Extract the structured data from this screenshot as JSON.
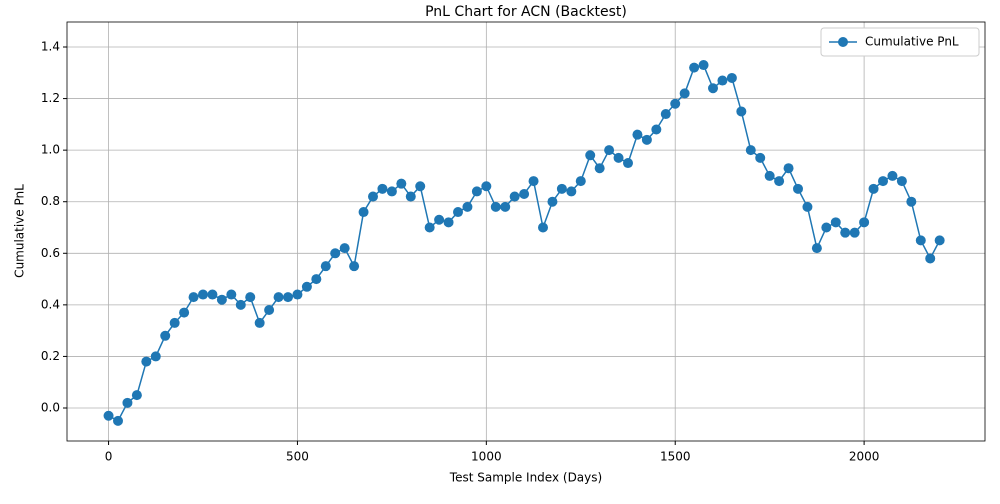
{
  "chart_data": {
    "type": "line",
    "title": "PnL Chart for ACN (Backtest)",
    "x_label": "Test Sample Index (Days)",
    "y_label": "Cumulative PnL",
    "x": [
      0,
      25,
      50,
      75,
      100,
      125,
      150,
      175,
      200,
      225,
      250,
      275,
      300,
      325,
      350,
      375,
      400,
      425,
      450,
      475,
      500,
      525,
      550,
      575,
      600,
      625,
      650,
      675,
      700,
      725,
      750,
      775,
      800,
      825,
      850,
      875,
      900,
      925,
      950,
      975,
      1000,
      1025,
      1050,
      1075,
      1100,
      1125,
      1150,
      1175,
      1200,
      1225,
      1250,
      1275,
      1300,
      1325,
      1350,
      1375,
      1400,
      1425,
      1450,
      1475,
      1500,
      1525,
      1550,
      1575,
      1600,
      1625,
      1650,
      1675,
      1700,
      1725,
      1750,
      1775,
      1800,
      1825,
      1850,
      1875,
      1900,
      1925,
      1950,
      1975,
      2000,
      2025,
      2050,
      2075,
      2100,
      2125,
      2150,
      2175,
      2200
    ],
    "series": [
      {
        "name": "Cumulative PnL",
        "color": "#1f77b4",
        "values": [
          -0.03,
          -0.05,
          0.02,
          0.05,
          0.18,
          0.2,
          0.28,
          0.33,
          0.37,
          0.43,
          0.44,
          0.44,
          0.42,
          0.44,
          0.4,
          0.43,
          0.33,
          0.38,
          0.43,
          0.43,
          0.44,
          0.47,
          0.5,
          0.55,
          0.6,
          0.62,
          0.55,
          0.76,
          0.82,
          0.85,
          0.84,
          0.87,
          0.82,
          0.86,
          0.7,
          0.73,
          0.72,
          0.76,
          0.78,
          0.84,
          0.86,
          0.78,
          0.78,
          0.82,
          0.83,
          0.88,
          0.7,
          0.8,
          0.85,
          0.84,
          0.88,
          0.98,
          0.93,
          1.0,
          0.97,
          0.95,
          1.06,
          1.04,
          1.08,
          1.14,
          1.18,
          1.22,
          1.32,
          1.33,
          1.24,
          1.27,
          1.28,
          1.15,
          1.0,
          0.97,
          0.9,
          0.88,
          0.93,
          0.85,
          0.78,
          0.62,
          0.7,
          0.72,
          0.68,
          0.68,
          0.72,
          0.85,
          0.88,
          0.9,
          0.88,
          0.8,
          0.65,
          0.58,
          0.65
        ]
      }
    ],
    "xlim": [
      -110,
      2320
    ],
    "ylim": [
      -0.128,
      1.497
    ],
    "xticks": [
      0,
      500,
      1000,
      1500,
      2000
    ],
    "yticks": [
      {
        "value": 0,
        "label": "0.0"
      },
      0.2,
      0.4,
      0.6,
      0.8,
      {
        "value": 1,
        "label": "1.0"
      },
      1.2,
      1.4
    ],
    "grid": true,
    "legend": "upper-right"
  }
}
